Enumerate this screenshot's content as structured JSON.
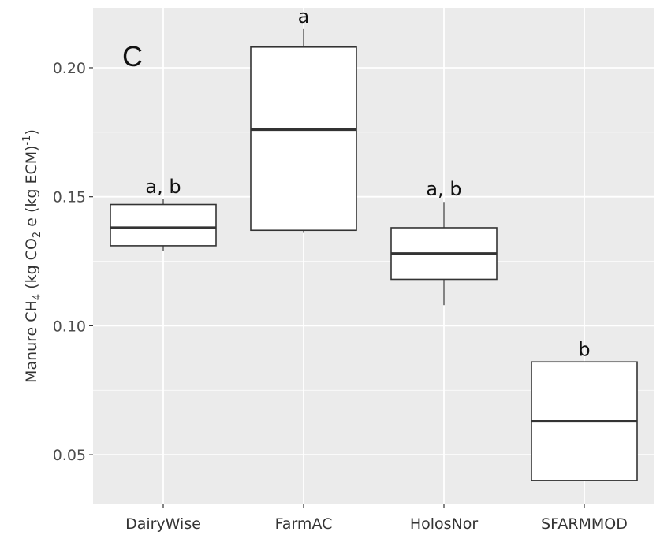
{
  "chart_data": {
    "type": "box",
    "panel_label": "C",
    "ylabel": {
      "main": "Manure CH",
      "sub1": "4",
      "mid1": " (kg CO",
      "sub2": "2",
      "mid2": " e (kg ECM)",
      "sup": "-1",
      "end": ")"
    },
    "ylim": [
      0.03,
      0.22
    ],
    "yticks": [
      {
        "value": 0.05,
        "label": "0.05"
      },
      {
        "value": 0.1,
        "label": "0.10"
      },
      {
        "value": 0.15,
        "label": "0.15"
      },
      {
        "value": 0.2,
        "label": "0.20"
      }
    ],
    "categories": [
      "DairyWise",
      "FarmAC",
      "HolosNor",
      "SFARMMOD"
    ],
    "boxes": [
      {
        "category": "DairyWise",
        "whisker_low": 0.129,
        "q1": 0.131,
        "median": 0.138,
        "q3": 0.147,
        "whisker_high": 0.149,
        "significance": "a, b"
      },
      {
        "category": "FarmAC",
        "whisker_low": 0.136,
        "q1": 0.137,
        "median": 0.176,
        "q3": 0.208,
        "whisker_high": 0.215,
        "significance": "a"
      },
      {
        "category": "HolosNor",
        "whisker_low": 0.108,
        "q1": 0.118,
        "median": 0.128,
        "q3": 0.138,
        "whisker_high": 0.148,
        "significance": "a, b"
      },
      {
        "category": "SFARMMOD",
        "whisker_low": 0.04,
        "q1": 0.04,
        "median": 0.063,
        "q3": 0.086,
        "whisker_high": 0.086,
        "significance": "b"
      }
    ],
    "grid": true,
    "background": "#ebebeb",
    "grid_color": "#ffffff",
    "box_fill": "#ffffff",
    "box_stroke": "#333333"
  }
}
